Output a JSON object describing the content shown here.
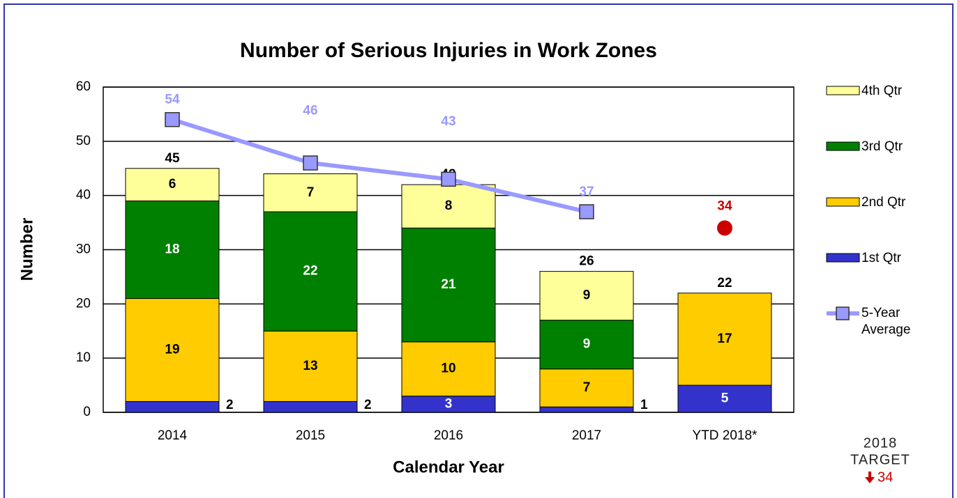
{
  "chart_data": {
    "type": "bar",
    "stacked": true,
    "title": "Number of Serious Injuries in Work Zones",
    "x_label": "Calendar Year",
    "y_label": "Number",
    "categories": [
      "2014",
      "2015",
      "2016",
      "2017",
      "YTD 2018*"
    ],
    "series": [
      {
        "name": "1st Qtr",
        "color": "#3333cc",
        "label_color": "#ffffff",
        "values": [
          2,
          2,
          3,
          1,
          5
        ]
      },
      {
        "name": "2nd Qtr",
        "color": "#ffcc00",
        "label_color": "#000000",
        "values": [
          19,
          13,
          10,
          7,
          17
        ]
      },
      {
        "name": "3rd Qtr",
        "color": "#008000",
        "label_color": "#ffffff",
        "values": [
          18,
          22,
          21,
          9,
          null
        ]
      },
      {
        "name": "4th Qtr",
        "color": "#ffff99",
        "label_color": "#000000",
        "values": [
          6,
          7,
          8,
          9,
          null
        ]
      }
    ],
    "totals": [
      45,
      44,
      42,
      26,
      22
    ],
    "line_series": {
      "type": "line",
      "name": "5-Year Average",
      "color": "#9999ff",
      "values": [
        54,
        46,
        43,
        37,
        null
      ]
    },
    "target_point": {
      "type": "scatter",
      "color": "#cc0000",
      "category": "YTD 2018*",
      "value": 34
    },
    "target_note": [
      "2018",
      "TARGET"
    ],
    "ylim": [
      0,
      60
    ],
    "yticks": [
      0,
      10,
      20,
      30,
      40,
      50,
      60
    ],
    "grid": true,
    "legend": "right"
  }
}
